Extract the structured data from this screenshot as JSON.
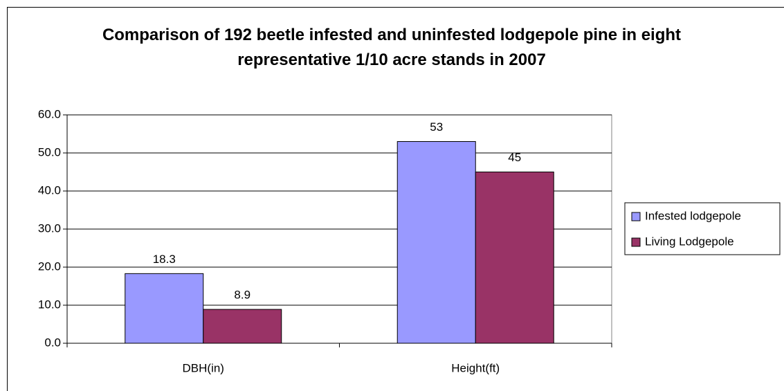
{
  "chart_data": {
    "type": "bar",
    "title": "Comparison of 192 beetle infested and uninfested lodgepole pine in eight representative 1/10 acre stands in 2007",
    "categories": [
      "DBH(in)",
      "Height(ft)"
    ],
    "series": [
      {
        "name": "Infested lodgepole",
        "color": "#9999ff",
        "values": [
          18.3,
          53
        ]
      },
      {
        "name": "Living Lodgepole",
        "color": "#993366",
        "values": [
          8.9,
          45
        ]
      }
    ],
    "ylim": [
      0,
      60
    ],
    "yticks": [
      {
        "value": 0,
        "label": "0.0"
      },
      {
        "value": 10,
        "label": "10.0"
      },
      {
        "value": 20,
        "label": "20.0"
      },
      {
        "value": 30,
        "label": "30.0"
      },
      {
        "value": 40,
        "label": "40.0"
      },
      {
        "value": 50,
        "label": "50.0"
      },
      {
        "value": 60,
        "label": "60.0"
      }
    ],
    "grid": true,
    "legend": "right"
  }
}
